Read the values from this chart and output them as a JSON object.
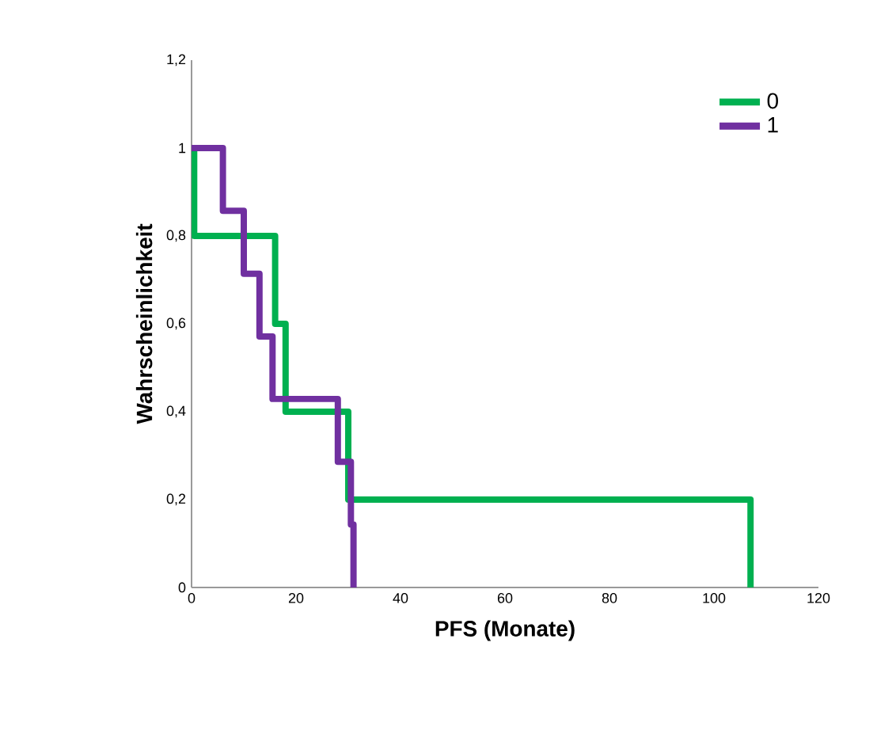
{
  "chart_data": {
    "type": "step",
    "xlabel": "PFS (Monate)",
    "ylabel": "Wahrscheinlichkeit",
    "xlim": [
      0,
      120
    ],
    "ylim": [
      0,
      1.2
    ],
    "xticks": [
      0,
      20,
      40,
      60,
      80,
      100,
      120
    ],
    "yticks": [
      {
        "value": 0,
        "label": "0"
      },
      {
        "value": 0.2,
        "label": "0,2"
      },
      {
        "value": 0.4,
        "label": "0,4"
      },
      {
        "value": 0.6,
        "label": "0,6"
      },
      {
        "value": 0.8,
        "label": "0,8"
      },
      {
        "value": 1,
        "label": "1"
      },
      {
        "value": 1.2,
        "label": "1,2"
      }
    ],
    "grid": false,
    "legend": "top right",
    "marker": "none",
    "line_style": "solid",
    "series": [
      {
        "name": "0",
        "color": "#00b050",
        "x": [
          0,
          0.5,
          16,
          18,
          30,
          107
        ],
        "values": [
          1,
          0.8,
          0.6,
          0.4,
          0.2,
          0
        ]
      },
      {
        "name": "1",
        "color": "#7030a0",
        "x": [
          0,
          6,
          10,
          13,
          15.5,
          28,
          30.5,
          31
        ],
        "values": [
          1,
          0.857,
          0.714,
          0.571,
          0.429,
          0.286,
          0.143,
          0
        ]
      }
    ]
  }
}
